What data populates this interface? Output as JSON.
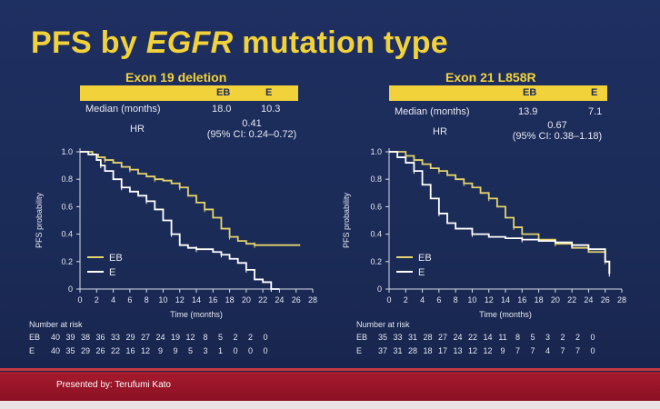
{
  "slide": {
    "title_part1": "PFS by ",
    "title_italic": "EGFR",
    "title_part2": " mutation type",
    "presented_by": "Presented by: Terufumi Kato",
    "colors": {
      "background": "#1d2d5c",
      "accent": "#f2d23b",
      "eb_line": "#e4d36c",
      "e_line": "#ffffff",
      "footer": "#a51a2e"
    }
  },
  "panels": [
    {
      "title": "Exon 19 deletion",
      "header": {
        "eb": "EB",
        "e": "E"
      },
      "median_label": "Median (months)",
      "median_eb": "18.0",
      "median_e": "10.3",
      "hr_label": "HR",
      "hr_value": "0.41",
      "hr_ci": "(95% CI: 0.24–0.72)",
      "risk_title": "Number at risk",
      "risk_rows": [
        {
          "label": "EB",
          "values": [
            "40",
            "39",
            "38",
            "36",
            "33",
            "29",
            "27",
            "24",
            "19",
            "12",
            "8",
            "5",
            "2",
            "2",
            "0"
          ]
        },
        {
          "label": "E",
          "values": [
            "40",
            "35",
            "29",
            "26",
            "22",
            "16",
            "12",
            "9",
            "9",
            "5",
            "3",
            "1",
            "0",
            "0",
            "0"
          ]
        }
      ]
    },
    {
      "title": "Exon 21 L858R",
      "header": {
        "eb": "EB",
        "e": "E"
      },
      "median_label": "Median (months)",
      "median_eb": "13.9",
      "median_e": "7.1",
      "hr_label": "HR",
      "hr_value": "0.67",
      "hr_ci": "(95% CI: 0.38–1.18)",
      "risk_title": "Number at risk",
      "risk_rows": [
        {
          "label": "EB",
          "values": [
            "35",
            "33",
            "31",
            "28",
            "27",
            "24",
            "22",
            "14",
            "11",
            "8",
            "5",
            "3",
            "2",
            "2",
            "0"
          ]
        },
        {
          "label": "E",
          "values": [
            "37",
            "31",
            "28",
            "18",
            "17",
            "13",
            "12",
            "12",
            "9",
            "7",
            "7",
            "4",
            "7",
            "7",
            "0"
          ]
        }
      ]
    }
  ],
  "chart_data": [
    {
      "type": "line",
      "title": "Exon 19 deletion",
      "xlabel": "Time (months)",
      "ylabel": "PFS probability",
      "xlim": [
        0,
        28
      ],
      "ylim": [
        0,
        1.0
      ],
      "xticks": [
        "0",
        "2",
        "4",
        "6",
        "8",
        "10",
        "12",
        "14",
        "16",
        "18",
        "20",
        "22",
        "24",
        "26",
        "28"
      ],
      "yticks": [
        "0",
        "0.2",
        "0.4",
        "0.6",
        "0.8",
        "1.0"
      ],
      "legend": [
        "EB",
        "E"
      ],
      "legend_position": "bottom-left",
      "series": [
        {
          "name": "EB",
          "color": "#e4d36c",
          "x": [
            0,
            1.5,
            2.2,
            3,
            4,
            5,
            6,
            7,
            8,
            9,
            10,
            11,
            12,
            13,
            14,
            15,
            16,
            17,
            18,
            19,
            20,
            21,
            22,
            26.5
          ],
          "y": [
            1.0,
            0.98,
            0.96,
            0.94,
            0.92,
            0.89,
            0.87,
            0.84,
            0.82,
            0.8,
            0.79,
            0.77,
            0.74,
            0.68,
            0.63,
            0.58,
            0.52,
            0.44,
            0.38,
            0.35,
            0.33,
            0.32,
            0.32,
            0.32
          ]
        },
        {
          "name": "E",
          "color": "#ffffff",
          "x": [
            0,
            1,
            2,
            2.5,
            3,
            4,
            5,
            6,
            7,
            8,
            9,
            10,
            11,
            12,
            13,
            14,
            15,
            16,
            17,
            18,
            19,
            20,
            21,
            22,
            23,
            24
          ],
          "y": [
            1.0,
            0.98,
            0.94,
            0.9,
            0.86,
            0.8,
            0.74,
            0.71,
            0.68,
            0.64,
            0.58,
            0.5,
            0.4,
            0.32,
            0.3,
            0.29,
            0.29,
            0.27,
            0.25,
            0.22,
            0.19,
            0.14,
            0.07,
            0.05,
            0.0,
            0.0
          ]
        }
      ]
    },
    {
      "type": "line",
      "title": "Exon 21 L858R",
      "xlabel": "Time (months)",
      "ylabel": "PFS probability",
      "xlim": [
        0,
        28
      ],
      "ylim": [
        0,
        1.0
      ],
      "xticks": [
        "0",
        "2",
        "4",
        "6",
        "8",
        "10",
        "12",
        "14",
        "16",
        "18",
        "20",
        "22",
        "24",
        "26",
        "28"
      ],
      "yticks": [
        "0",
        "0.2",
        "0.4",
        "0.6",
        "0.8",
        "1.0"
      ],
      "legend": [
        "EB",
        "E"
      ],
      "legend_position": "bottom-left",
      "series": [
        {
          "name": "EB",
          "color": "#e4d36c",
          "x": [
            0,
            1,
            2,
            3,
            4,
            5,
            6,
            7,
            8,
            9,
            10,
            11,
            12,
            13,
            14,
            15,
            16,
            18,
            20,
            22,
            24,
            26,
            26.5
          ],
          "y": [
            1.0,
            1.0,
            0.97,
            0.94,
            0.91,
            0.88,
            0.86,
            0.83,
            0.8,
            0.77,
            0.74,
            0.7,
            0.66,
            0.6,
            0.52,
            0.45,
            0.4,
            0.36,
            0.33,
            0.3,
            0.27,
            0.2,
            0.11
          ]
        },
        {
          "name": "E",
          "color": "#ffffff",
          "x": [
            0,
            1,
            2,
            3,
            4,
            5,
            6,
            7,
            8,
            10,
            12,
            14,
            16,
            18,
            20,
            22,
            24,
            26,
            26.5
          ],
          "y": [
            1.0,
            0.96,
            0.92,
            0.86,
            0.76,
            0.66,
            0.55,
            0.48,
            0.44,
            0.4,
            0.38,
            0.37,
            0.36,
            0.35,
            0.34,
            0.32,
            0.29,
            0.2,
            0.11
          ]
        }
      ]
    }
  ]
}
